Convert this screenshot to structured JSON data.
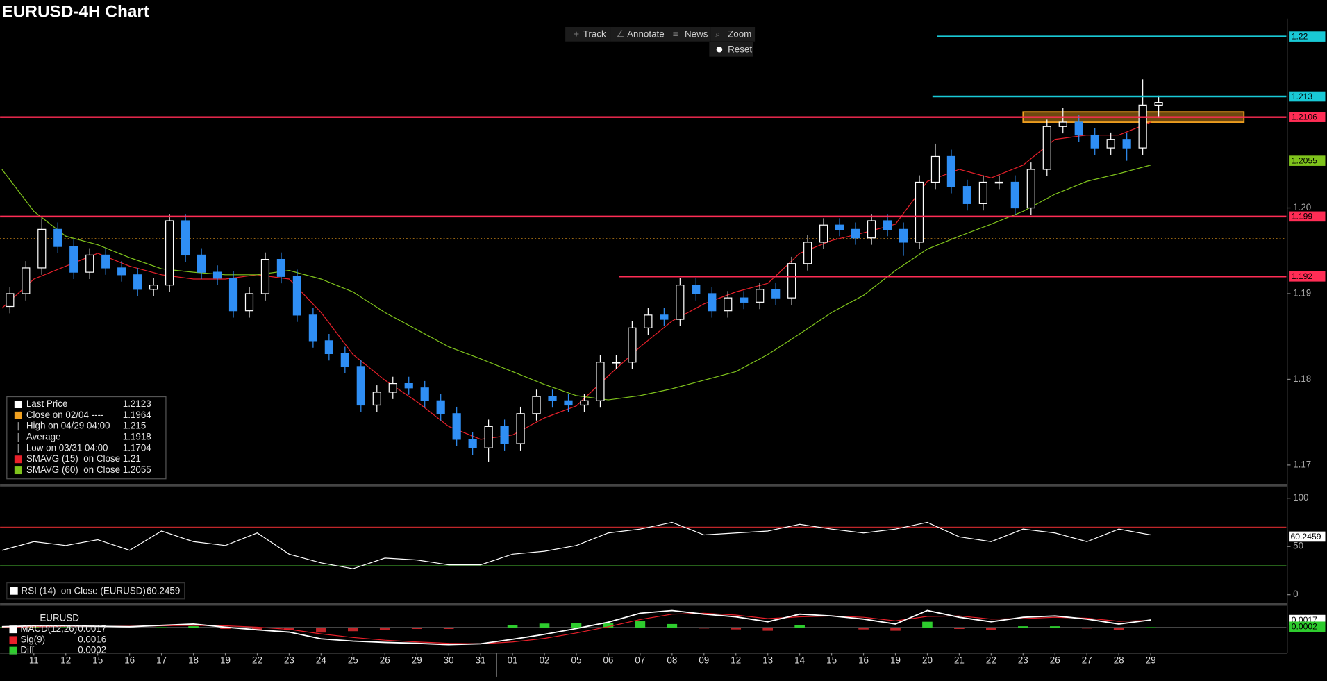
{
  "header": {
    "title": "EURUSD-4H Chart"
  },
  "toolbar": [
    "Track",
    "Annotate",
    "News",
    "Zoom",
    "Reset"
  ],
  "chart_data": [
    {
      "type": "candlestick",
      "categories": [
        "11",
        "12",
        "15",
        "16",
        "17",
        "18",
        "19",
        "22",
        "23",
        "24",
        "25",
        "26",
        "29",
        "30",
        "31",
        "01",
        "02",
        "05",
        "06",
        "07",
        "08",
        "09",
        "12",
        "13",
        "14",
        "15",
        "16",
        "19",
        "20",
        "21",
        "22",
        "23",
        "26",
        "27",
        "28",
        "29"
      ],
      "xlim": [
        -1.06,
        39.25
      ],
      "ylim": [
        1.1678,
        1.2213
      ],
      "yticks": [
        1.17,
        1.18,
        1.19,
        {
          "value": 1.2,
          "label": "1.20"
        }
      ],
      "candles": {
        "up_color": "#ffffff",
        "down_color": "#2f8ef4",
        "x": [
          -0.75,
          -0.25,
          0.25,
          0.75,
          1.25,
          1.75,
          2.25,
          2.75,
          3.25,
          3.75,
          4.25,
          4.75,
          5.25,
          5.75,
          6.25,
          6.75,
          7.25,
          7.75,
          8.25,
          8.75,
          9.25,
          9.75,
          10.25,
          10.75,
          11.25,
          11.75,
          12.25,
          12.75,
          13.25,
          13.75,
          14.25,
          14.75,
          15.25,
          15.75,
          16.25,
          16.75,
          17.25,
          17.75,
          18.25,
          18.75,
          19.25,
          19.75,
          20.25,
          20.75,
          21.25,
          21.75,
          22.25,
          22.75,
          23.25,
          23.75,
          24.25,
          24.75,
          25.25,
          25.75,
          26.25,
          26.75,
          27.25,
          27.75,
          28.25,
          28.75,
          29.25,
          29.75,
          30.25,
          30.75,
          31.25,
          31.75,
          32.25,
          32.75,
          33.25,
          33.75,
          34.25,
          34.75,
          35.25
        ],
        "ohlc": [
          [
            1.1885,
            1.1908,
            1.1877,
            1.19
          ],
          [
            1.19,
            1.1938,
            1.1892,
            1.193
          ],
          [
            1.193,
            1.1988,
            1.1922,
            1.1975
          ],
          [
            1.1975,
            1.1983,
            1.1947,
            1.1955
          ],
          [
            1.1955,
            1.1963,
            1.1917,
            1.1925
          ],
          [
            1.1925,
            1.1953,
            1.1917,
            1.1945
          ],
          [
            1.1945,
            1.1953,
            1.1922,
            1.193
          ],
          [
            1.193,
            1.1938,
            1.1914,
            1.1922
          ],
          [
            1.1922,
            1.193,
            1.1897,
            1.1905
          ],
          [
            1.1905,
            1.1918,
            1.1897,
            1.191
          ],
          [
            1.191,
            1.1993,
            1.1902,
            1.1985
          ],
          [
            1.1985,
            1.1993,
            1.1937,
            1.1945
          ],
          [
            1.1945,
            1.1953,
            1.1917,
            1.1925
          ],
          [
            1.1925,
            1.1933,
            1.191,
            1.1918
          ],
          [
            1.1918,
            1.1926,
            1.1872,
            1.188
          ],
          [
            1.188,
            1.1908,
            1.1872,
            1.19
          ],
          [
            1.19,
            1.1948,
            1.1892,
            1.194
          ],
          [
            1.194,
            1.1948,
            1.1912,
            1.192
          ],
          [
            1.192,
            1.1928,
            1.1867,
            1.1875
          ],
          [
            1.1875,
            1.1883,
            1.1837,
            1.1845
          ],
          [
            1.1845,
            1.1853,
            1.1822,
            1.183
          ],
          [
            1.183,
            1.1838,
            1.1807,
            1.1815
          ],
          [
            1.1815,
            1.1823,
            1.1762,
            1.177
          ],
          [
            1.177,
            1.1793,
            1.1762,
            1.1785
          ],
          [
            1.1785,
            1.1803,
            1.1777,
            1.1795
          ],
          [
            1.1795,
            1.1803,
            1.1782,
            1.179
          ],
          [
            1.179,
            1.1798,
            1.1767,
            1.1775
          ],
          [
            1.1775,
            1.1783,
            1.1752,
            1.176
          ],
          [
            1.176,
            1.1768,
            1.1722,
            1.173
          ],
          [
            1.173,
            1.1738,
            1.1712,
            1.172
          ],
          [
            1.172,
            1.1753,
            1.1704,
            1.1745
          ],
          [
            1.1745,
            1.1753,
            1.1717,
            1.1725
          ],
          [
            1.1725,
            1.1768,
            1.1717,
            1.176
          ],
          [
            1.176,
            1.1788,
            1.1752,
            1.178
          ],
          [
            1.178,
            1.1788,
            1.1767,
            1.1775
          ],
          [
            1.1775,
            1.1783,
            1.1762,
            1.177
          ],
          [
            1.177,
            1.1783,
            1.1762,
            1.1775
          ],
          [
            1.1775,
            1.1828,
            1.1767,
            1.182
          ],
          [
            1.182,
            1.1828,
            1.1812,
            1.182
          ],
          [
            1.182,
            1.1868,
            1.1812,
            1.186
          ],
          [
            1.186,
            1.1883,
            1.1852,
            1.1875
          ],
          [
            1.1875,
            1.1883,
            1.1862,
            1.187
          ],
          [
            1.187,
            1.1918,
            1.1862,
            1.191
          ],
          [
            1.191,
            1.1918,
            1.1892,
            1.19
          ],
          [
            1.19,
            1.1908,
            1.1872,
            1.188
          ],
          [
            1.188,
            1.1903,
            1.1872,
            1.1895
          ],
          [
            1.1895,
            1.1903,
            1.1882,
            1.189
          ],
          [
            1.189,
            1.1913,
            1.1882,
            1.1905
          ],
          [
            1.1905,
            1.1913,
            1.1887,
            1.1895
          ],
          [
            1.1895,
            1.1943,
            1.1887,
            1.1935
          ],
          [
            1.1935,
            1.1968,
            1.1927,
            1.196
          ],
          [
            1.196,
            1.1988,
            1.1952,
            1.198
          ],
          [
            1.198,
            1.1988,
            1.1967,
            1.1975
          ],
          [
            1.1975,
            1.1983,
            1.1957,
            1.1965
          ],
          [
            1.1965,
            1.1993,
            1.1957,
            1.1985
          ],
          [
            1.1985,
            1.1993,
            1.1967,
            1.1975
          ],
          [
            1.1975,
            1.1983,
            1.1944,
            1.196
          ],
          [
            1.196,
            1.2038,
            1.1952,
            1.203
          ],
          [
            1.203,
            1.2075,
            1.2022,
            1.206
          ],
          [
            1.206,
            1.2068,
            1.2017,
            1.2025
          ],
          [
            1.2025,
            1.2033,
            1.1997,
            1.2005
          ],
          [
            1.2005,
            1.2038,
            1.1997,
            1.203
          ],
          [
            1.203,
            1.2038,
            1.2022,
            1.203
          ],
          [
            1.203,
            1.2038,
            1.1992,
            1.2
          ],
          [
            1.2,
            1.2053,
            1.1992,
            1.2045
          ],
          [
            1.2045,
            1.2103,
            1.2037,
            1.2095
          ],
          [
            1.2095,
            1.2117,
            1.2087,
            1.21
          ],
          [
            1.21,
            1.2108,
            1.2077,
            1.2085
          ],
          [
            1.2085,
            1.2093,
            1.2062,
            1.207
          ],
          [
            1.207,
            1.2088,
            1.2062,
            1.208
          ],
          [
            1.208,
            1.2088,
            1.2055,
            1.207
          ],
          [
            1.207,
            1.215,
            1.2062,
            1.212
          ],
          [
            1.212,
            1.2131,
            1.2105,
            1.2123
          ]
        ]
      },
      "series": [
        {
          "name": "SMAVG (15)  on Close",
          "color": "#e8202a",
          "last": 1.21,
          "x": [
            -1,
            0,
            1,
            2,
            3,
            4,
            5,
            6,
            7,
            8,
            9,
            10,
            11,
            12,
            13,
            14,
            15,
            16,
            17,
            18,
            19,
            20,
            21,
            22,
            23,
            24,
            25,
            26,
            27,
            28,
            29,
            30,
            31,
            32,
            33,
            34,
            35
          ],
          "values": [
            1.1883,
            1.1917,
            1.1932,
            1.1947,
            1.1932,
            1.1922,
            1.1917,
            1.1917,
            1.1922,
            1.1917,
            1.1878,
            1.1829,
            1.1799,
            1.1774,
            1.1745,
            1.173,
            1.1735,
            1.1755,
            1.1769,
            1.1804,
            1.1838,
            1.1868,
            1.1888,
            1.1902,
            1.1912,
            1.1947,
            1.1962,
            1.1971,
            1.1981,
            1.2031,
            1.2045,
            1.2035,
            1.205,
            1.208,
            1.2085,
            1.2085,
            1.21
          ]
        },
        {
          "name": "SMAVG (60)  on Close",
          "color": "#7fc31c",
          "last": 1.2055,
          "x": [
            -1,
            0,
            1,
            2,
            3,
            4,
            5,
            6,
            7,
            8,
            9,
            10,
            11,
            12,
            13,
            14,
            15,
            16,
            17,
            18,
            19,
            20,
            21,
            22,
            23,
            24,
            25,
            26,
            27,
            28,
            29,
            30,
            31,
            32,
            33,
            34,
            35
          ],
          "values": [
            1.2045,
            1.1996,
            1.1967,
            1.1957,
            1.1942,
            1.1929,
            1.1925,
            1.1922,
            1.1922,
            1.1927,
            1.1917,
            1.1902,
            1.1878,
            1.1858,
            1.1838,
            1.1824,
            1.1809,
            1.1794,
            1.1781,
            1.1776,
            1.1781,
            1.1789,
            1.1799,
            1.1809,
            1.1829,
            1.1853,
            1.1878,
            1.1898,
            1.1927,
            1.1952,
            1.1967,
            1.1981,
            1.1996,
            1.2016,
            1.2031,
            1.204,
            1.205
          ]
        }
      ],
      "levels": [
        {
          "value": 1.22,
          "color": "#19c9d6",
          "from": 28.3
        },
        {
          "value": 1.213,
          "color": "#19c9d6",
          "from": 28.16
        },
        {
          "value": 1.2106,
          "color": "#ff2d55"
        },
        {
          "value": 1.199,
          "color": "#ff2d55"
        },
        {
          "value": 1.192,
          "color": "#ff2d55",
          "from": 18.35
        }
      ],
      "zone": {
        "from": 31,
        "to": 37.92,
        "top": 1.2112,
        "bottom": 1.21,
        "color": "#f0a020"
      },
      "legend": [
        {
          "label": "Last Price",
          "value": 1.2123,
          "color": "#ffffff"
        },
        {
          "label": "Close on 02/04 ----",
          "value": 1.1964,
          "color": "#f0a020"
        },
        {
          "label": "High on 04/29 04:00",
          "value": 1.215
        },
        {
          "label": "Average",
          "value": 1.1918
        },
        {
          "label": "Low on 03/31 04:00",
          "value": 1.1704
        }
      ]
    },
    {
      "type": "line",
      "name": "RSI (14)  on Close (EURUSD)",
      "last": 60.2459,
      "color": "#ffffff",
      "ylim": [
        -7.9,
        109.6
      ],
      "yticks": [
        0,
        50,
        100
      ],
      "bands": [
        {
          "value": 70,
          "color": "#c0262a"
        },
        {
          "value": 30,
          "color": "#3c9a2a"
        }
      ],
      "x": [
        -1,
        0,
        1,
        2,
        3,
        4,
        5,
        6,
        7,
        8,
        9,
        10,
        11,
        12,
        13,
        14,
        15,
        16,
        17,
        18,
        19,
        20,
        21,
        22,
        23,
        24,
        25,
        26,
        27,
        28,
        29,
        30,
        31,
        32,
        33,
        34,
        35
      ],
      "values": [
        46,
        55,
        51,
        57,
        46,
        66,
        55,
        51,
        64,
        42,
        33,
        27,
        38,
        36,
        31,
        31,
        42,
        45,
        51,
        64,
        68,
        75,
        62,
        64,
        66,
        73,
        68,
        64,
        68,
        75,
        60,
        55,
        68,
        64,
        55,
        68,
        62
      ]
    },
    {
      "type": "macd",
      "title": "EURUSD",
      "ylim": [
        -0.0053,
        0.0045
      ],
      "x": [
        -1,
        0,
        1,
        2,
        3,
        4,
        5,
        6,
        7,
        8,
        9,
        10,
        11,
        12,
        13,
        14,
        15,
        16,
        17,
        18,
        19,
        20,
        21,
        22,
        23,
        24,
        25,
        26,
        27,
        28,
        29,
        30,
        31,
        32,
        33,
        34,
        35
      ],
      "series": [
        {
          "name": "MACD(12,26)",
          "last": 0.0017,
          "color": "#ffffff",
          "values": [
            0.0002,
            0.0004,
            0.0004,
            0.0003,
            0.0002,
            0.0005,
            0.0008,
            0.0001,
            -0.0005,
            -0.001,
            -0.0025,
            -0.003,
            -0.0033,
            -0.0035,
            -0.0038,
            -0.0036,
            -0.0026,
            -0.0015,
            -0.0002,
            0.0012,
            0.0032,
            0.0038,
            0.003,
            0.0024,
            0.0013,
            0.003,
            0.0026,
            0.0019,
            0.0008,
            0.0038,
            0.0023,
            0.0013,
            0.0023,
            0.0026,
            0.0019,
            0.0008,
            0.0017
          ]
        },
        {
          "name": "Sig(9)",
          "last": 0.0016,
          "color": "#e8202a",
          "values": [
            0.0001,
            0.0002,
            0.0003,
            0.0003,
            0.0003,
            0.0004,
            0.0005,
            0.0004,
            0.0001,
            -0.0004,
            -0.0014,
            -0.0022,
            -0.0028,
            -0.0032,
            -0.0035,
            -0.0036,
            -0.0032,
            -0.0024,
            -0.0012,
            0.0002,
            0.0018,
            0.003,
            0.0032,
            0.0028,
            0.002,
            0.0024,
            0.0026,
            0.0023,
            0.0015,
            0.0025,
            0.0026,
            0.0019,
            0.002,
            0.0023,
            0.0021,
            0.0014,
            0.0016
          ]
        },
        {
          "name": "Diff",
          "last": 0.0002,
          "color": "#2ecc2e",
          "values": [
            0.0001,
            0.0002,
            0.0001,
            0,
            -0.0001,
            0.0001,
            0.0003,
            -0.0003,
            -0.0006,
            -0.0006,
            -0.0011,
            -0.0008,
            -0.0005,
            -0.0003,
            -0.0003,
            0,
            0.0006,
            0.0009,
            0.001,
            0.001,
            0.0014,
            0.0008,
            -0.0002,
            -0.0004,
            -0.0007,
            0.0006,
            0,
            -0.0004,
            -0.0007,
            0.0013,
            -0.0003,
            -0.0006,
            0.0003,
            0.0003,
            -0.0002,
            -0.0006,
            0.0001
          ]
        }
      ]
    }
  ]
}
